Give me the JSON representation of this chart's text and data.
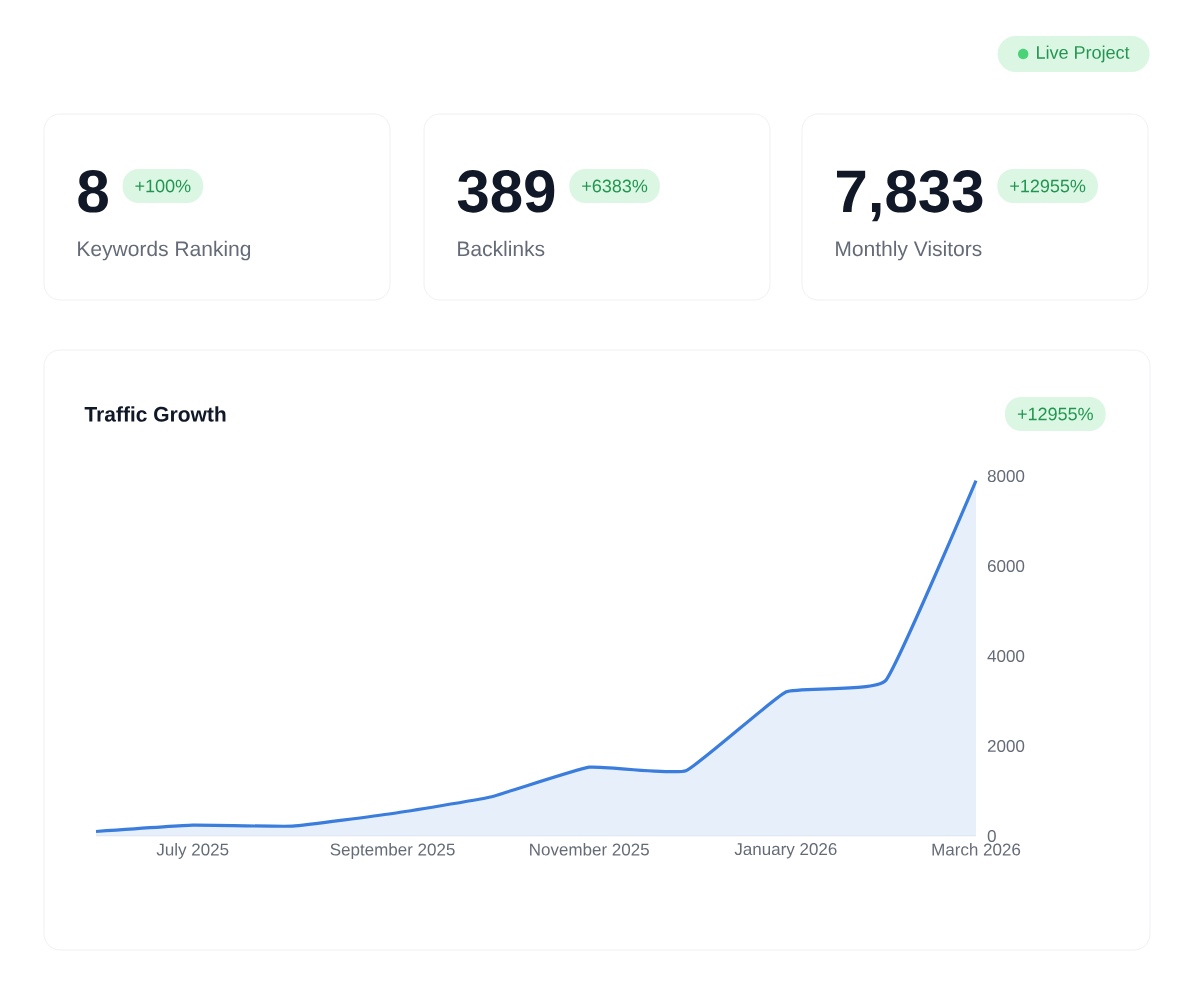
{
  "chart_data": [
    {
      "type": "other",
      "annotations": [
        "Live Project",
        "8",
        "+100%",
        "Keywords Ranking",
        "389",
        "+6383%",
        "Backlinks",
        "7,833",
        "+12955%",
        "Monthly Visitors"
      ]
    },
    {
      "type": "area",
      "title": "Traffic Growth",
      "annotations": [
        "+12955%"
      ],
      "color": "#3b7ddd",
      "x": [
        "2025-06",
        "2025-07",
        "2025-08",
        "2025-09",
        "2025-10",
        "2025-11",
        "2025-12",
        "2026-01",
        "2026-02",
        "2026-03"
      ],
      "values": [
        100,
        240,
        220,
        500,
        860,
        1530,
        1450,
        3200,
        3460,
        7900
      ],
      "xlim": [
        "2025-06",
        "2026-03"
      ],
      "xticks": [
        {
          "value": "2025-07",
          "label": "July 2025"
        },
        {
          "value": "2025-09",
          "label": "September 2025"
        },
        {
          "value": "2025-11",
          "label": "November 2025"
        },
        {
          "value": "2026-01",
          "label": "January 2026"
        },
        {
          "value": "2026-03",
          "label": "March 2026"
        }
      ],
      "ylim": [
        0,
        8000
      ],
      "yticks": [
        0,
        2000,
        4000,
        6000,
        8000
      ]
    }
  ]
}
